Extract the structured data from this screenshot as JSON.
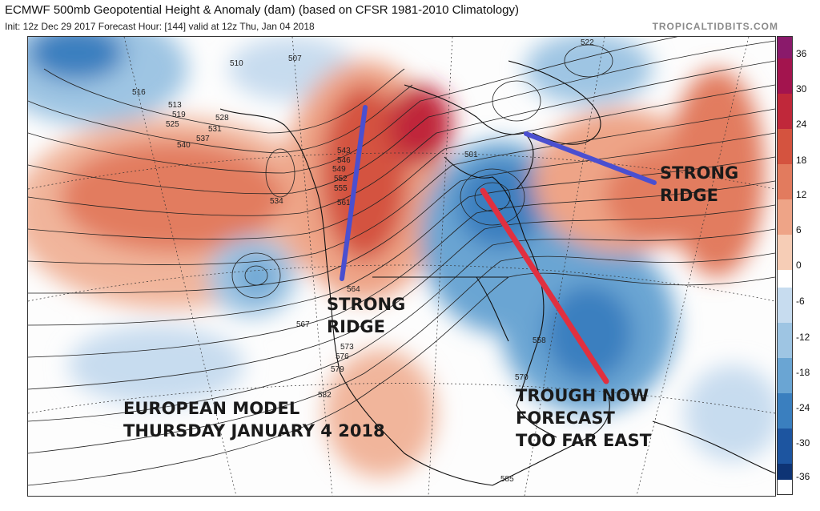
{
  "header": {
    "title": "ECMWF 500mb Geopotential Height & Anomaly (dam) (based on CFSR 1981-2010 Climatology)",
    "subtitle": "Init: 12z Dec 29 2017   Forecast Hour: [144]   valid at 12z Thu, Jan 04 2018",
    "brand": "TROPICALTIDBITS.COM"
  },
  "colorbar": {
    "labels": [
      "36",
      "30",
      "24",
      "18",
      "12",
      "6",
      "0",
      "-6",
      "-12",
      "-18",
      "-24",
      "-30",
      "-36"
    ],
    "colors": [
      "#8a1a6b",
      "#a3144e",
      "#c0283a",
      "#d4533f",
      "#e27b5e",
      "#eea487",
      "#f6cdb6",
      "#ffffff",
      "#c7dcef",
      "#9ec5e3",
      "#6aa5d3",
      "#3a7fbf",
      "#1d55a0",
      "#0e3475"
    ]
  },
  "annotations": {
    "ridge_west_line1": "STRONG",
    "ridge_west_line2": "RIDGE",
    "ridge_east_line1": "STRONG",
    "ridge_east_line2": "RIDGE",
    "trough_line1": "TROUGH NOW",
    "trough_line2": "FORECAST",
    "trough_line3": "TOO FAR EAST",
    "model_line1": "EUROPEAN MODEL",
    "model_line2": "THURSDAY JANUARY 4 2018"
  },
  "height_labels": [
    "510",
    "507",
    "516",
    "513",
    "519",
    "525",
    "528",
    "531",
    "537",
    "540",
    "534",
    "543",
    "546",
    "549",
    "552",
    "555",
    "558",
    "561",
    "564",
    "567",
    "570",
    "573",
    "576",
    "579",
    "582",
    "585",
    "522",
    "501"
  ],
  "annotation_colors": {
    "ridge_line": "#4a4fd0",
    "trough_line": "#e03040"
  }
}
